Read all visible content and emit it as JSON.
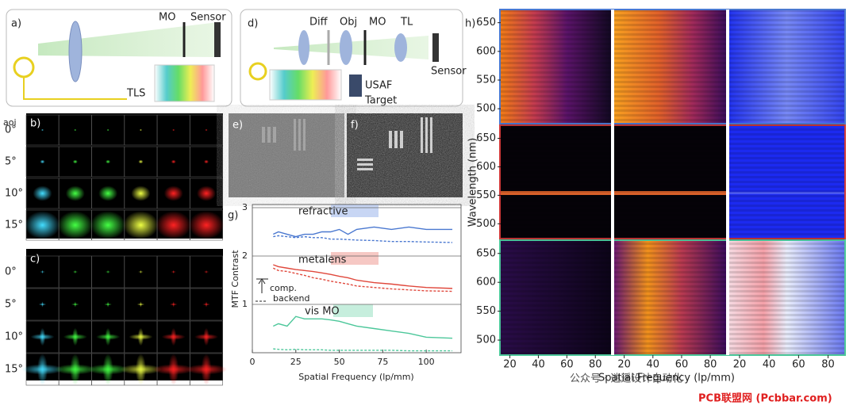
{
  "panels": {
    "a": {
      "label": "a)",
      "mo": "MO",
      "sensor": "Sensor",
      "tls": "TLS"
    },
    "d": {
      "label": "d)",
      "diff": "Diff",
      "obj": "Obj",
      "mo": "MO",
      "tl": "TL",
      "sensor": "Sensor",
      "target_1": "USAF",
      "target_2": "Target"
    },
    "b": {
      "label": "b)",
      "header": "aoi",
      "rows": [
        "0°",
        "5°",
        "10°",
        "15°"
      ]
    },
    "c": {
      "label": "c)",
      "rows": [
        "0°",
        "5°",
        "10°",
        "15°"
      ]
    },
    "e": {
      "label": "e)"
    },
    "f": {
      "label": "f)"
    },
    "h": {
      "label": "h)",
      "ylabel": "Wavelength (nm)",
      "xlabel": "Spatial Frequency (lp/mm)",
      "ylim": [
        474,
        673
      ],
      "yticks": [
        500,
        550,
        600,
        650
      ],
      "xlim": [
        13,
        91
      ],
      "xticks": [
        20,
        40,
        60,
        80
      ]
    }
  },
  "chart_data": {
    "type": "line",
    "label": "g)",
    "xlabel": "Spatial Frequency (lp/mm)",
    "ylabel": "MTF Contrast",
    "annotations": [
      "refractive",
      "metalens",
      "vis MO",
      "comp.",
      "backend"
    ],
    "xlim": [
      0,
      120
    ],
    "xticks": [
      0,
      25,
      50,
      75,
      100
    ],
    "ylim": [
      0,
      3
    ],
    "yticks": [
      1,
      2,
      3
    ],
    "grid": true,
    "x": [
      12,
      15,
      20,
      25,
      30,
      35,
      40,
      45,
      50,
      55,
      60,
      70,
      80,
      90,
      100,
      115
    ],
    "series": [
      {
        "color": "#4a78d0",
        "dashed": false,
        "values": [
          2.45,
          2.5,
          2.45,
          2.4,
          2.45,
          2.45,
          2.5,
          2.5,
          2.55,
          2.45,
          2.55,
          2.6,
          2.55,
          2.6,
          2.55,
          2.55
        ]
      },
      {
        "color": "#4a78d0",
        "dashed": true,
        "values": [
          2.4,
          2.42,
          2.4,
          2.38,
          2.4,
          2.38,
          2.38,
          2.35,
          2.35,
          2.34,
          2.33,
          2.32,
          2.3,
          2.3,
          2.29,
          2.28
        ]
      },
      {
        "color": "#e0483c",
        "dashed": false,
        "values": [
          1.82,
          1.78,
          1.75,
          1.72,
          1.7,
          1.68,
          1.65,
          1.62,
          1.58,
          1.55,
          1.5,
          1.45,
          1.42,
          1.38,
          1.35,
          1.33
        ]
      },
      {
        "color": "#e0483c",
        "dashed": true,
        "values": [
          1.75,
          1.7,
          1.68,
          1.64,
          1.6,
          1.55,
          1.52,
          1.48,
          1.45,
          1.42,
          1.38,
          1.35,
          1.32,
          1.3,
          1.28,
          1.27
        ]
      },
      {
        "color": "#4cc79a",
        "dashed": false,
        "values": [
          0.55,
          0.6,
          0.55,
          0.75,
          0.7,
          0.7,
          0.7,
          0.68,
          0.65,
          0.6,
          0.55,
          0.5,
          0.45,
          0.4,
          0.32,
          0.3
        ]
      },
      {
        "color": "#4cc79a",
        "dashed": true,
        "values": [
          0.08,
          0.07,
          0.06,
          0.07,
          0.06,
          0.06,
          0.06,
          0.05,
          0.05,
          0.05,
          0.05,
          0.05,
          0.05,
          0.04,
          0.04,
          0.04
        ]
      }
    ]
  },
  "watermark": {
    "text": "公众号 · 逍遥设计自动化",
    "site": "PCB联盟网 (Pcbbar.com)"
  }
}
